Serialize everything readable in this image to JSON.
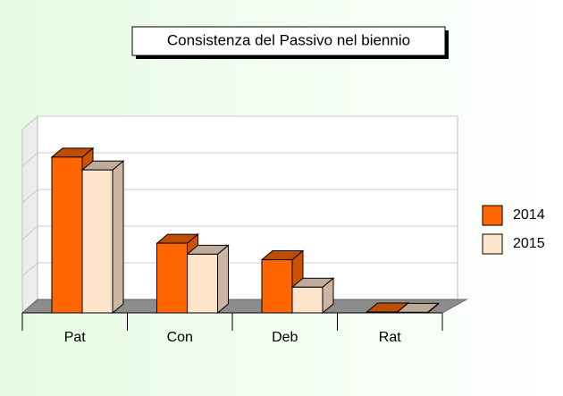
{
  "chart_data": {
    "type": "bar3d",
    "title": "Consistenza del Passivo nel biennio",
    "categories": [
      "Pat",
      "Con",
      "Deb",
      "Rat"
    ],
    "series": [
      {
        "name": "2014",
        "color": "#ff6600",
        "values": [
          85,
          38,
          29,
          0.5
        ]
      },
      {
        "name": "2015",
        "color": "#ffe4cc",
        "values": [
          78,
          32,
          14,
          0.3
        ]
      }
    ],
    "ylim": [
      0,
      100
    ],
    "yticks": [
      0,
      20,
      40,
      60,
      80,
      100
    ],
    "grid": true,
    "legend": "right"
  }
}
